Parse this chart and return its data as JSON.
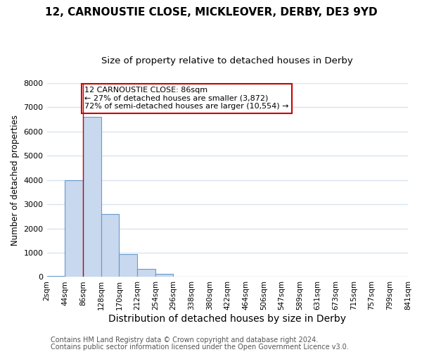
{
  "title": "12, CARNOUSTIE CLOSE, MICKLEOVER, DERBY, DE3 9YD",
  "subtitle": "Size of property relative to detached houses in Derby",
  "xlabel": "Distribution of detached houses by size in Derby",
  "ylabel": "Number of detached properties",
  "bar_left_edges": [
    2,
    44,
    86,
    128,
    170,
    212,
    254,
    296,
    338,
    380,
    422,
    464,
    506,
    547,
    589,
    631,
    673,
    715,
    757,
    799
  ],
  "bar_heights": [
    50,
    4000,
    6600,
    2600,
    950,
    320,
    120,
    0,
    0,
    0,
    0,
    0,
    0,
    0,
    0,
    0,
    0,
    0,
    0,
    0
  ],
  "bin_width": 42,
  "tick_labels": [
    "2sqm",
    "44sqm",
    "86sqm",
    "128sqm",
    "170sqm",
    "212sqm",
    "254sqm",
    "296sqm",
    "338sqm",
    "380sqm",
    "422sqm",
    "464sqm",
    "506sqm",
    "547sqm",
    "589sqm",
    "631sqm",
    "673sqm",
    "715sqm",
    "757sqm",
    "799sqm",
    "841sqm"
  ],
  "bar_color": "#c8d8ee",
  "bar_edge_color": "#6699cc",
  "property_line_x": 86,
  "ylim": [
    0,
    8000
  ],
  "yticks": [
    0,
    1000,
    2000,
    3000,
    4000,
    5000,
    6000,
    7000,
    8000
  ],
  "annotation_title": "12 CARNOUSTIE CLOSE: 86sqm",
  "annotation_line1": "← 27% of detached houses are smaller (3,872)",
  "annotation_line2": "72% of semi-detached houses are larger (10,554) →",
  "footer_line1": "Contains HM Land Registry data © Crown copyright and database right 2024.",
  "footer_line2": "Contains public sector information licensed under the Open Government Licence v3.0.",
  "plot_bg_color": "#ffffff",
  "fig_bg_color": "#ffffff",
  "grid_color": "#d8e4f0",
  "title_fontsize": 11,
  "subtitle_fontsize": 9.5,
  "xlabel_fontsize": 10,
  "ylabel_fontsize": 8.5,
  "tick_fontsize": 7.5,
  "annotation_box_color": "#ffffff",
  "annotation_box_edgecolor": "#cc0000",
  "red_line_color": "#cc0000",
  "footer_fontsize": 7,
  "footer_color": "#555555"
}
